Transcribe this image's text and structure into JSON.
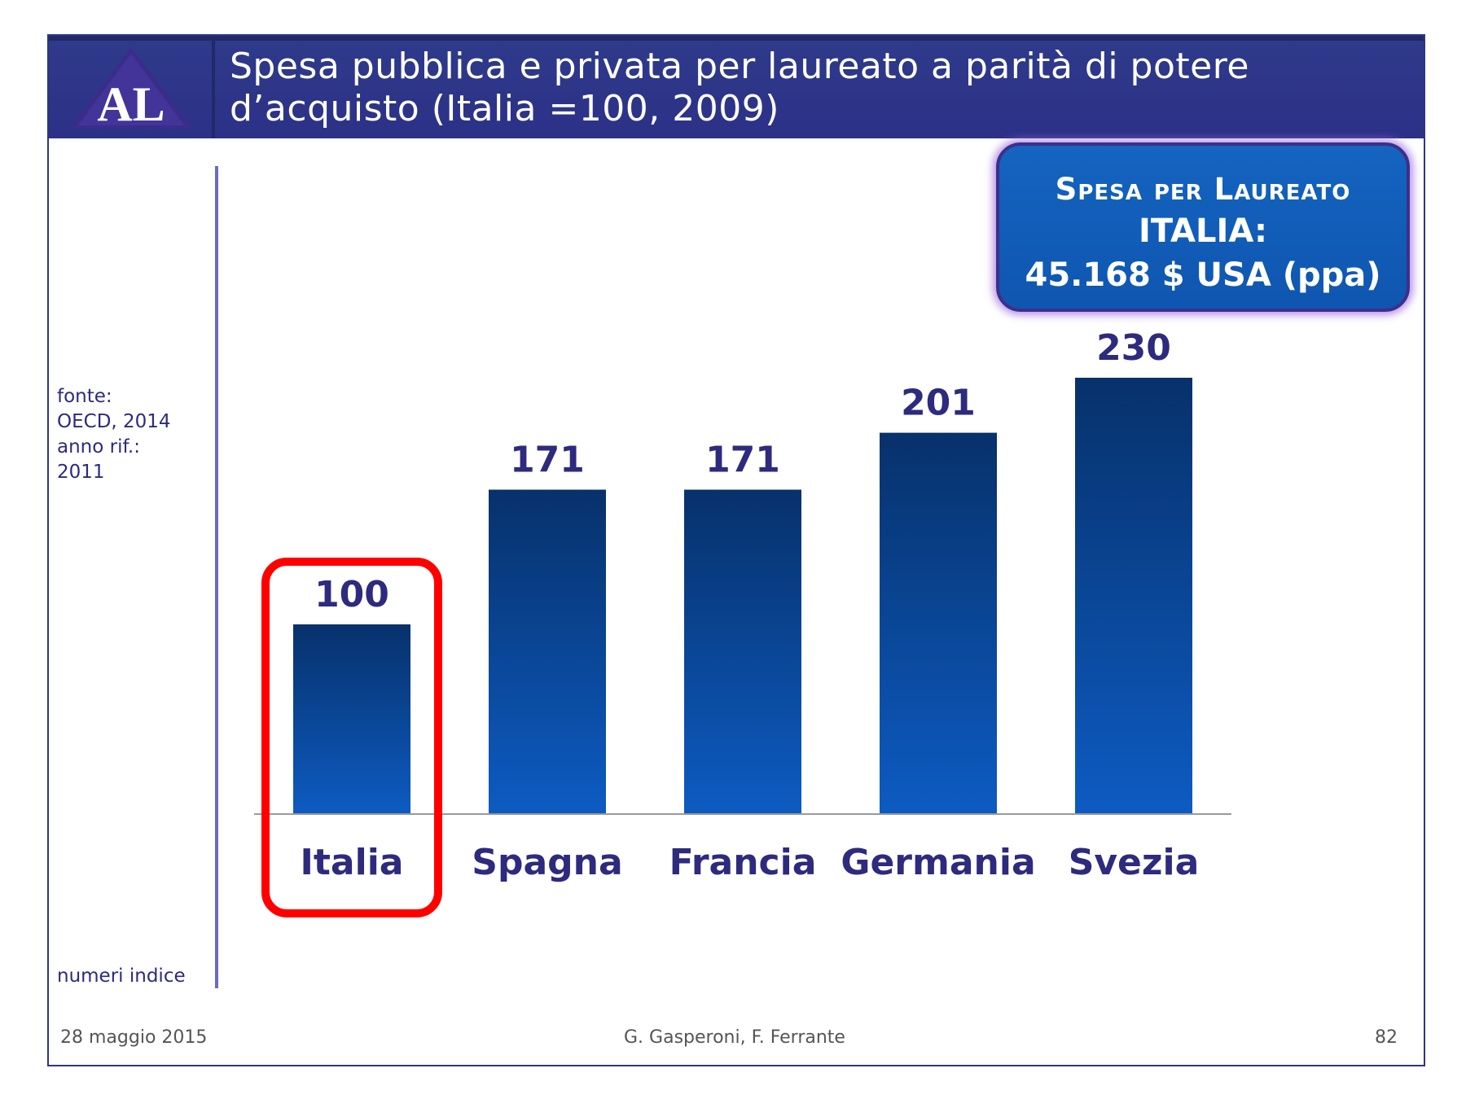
{
  "logo": {
    "text": "AL"
  },
  "title": "Spesa pubblica e privata per laureato a parità di potere d’acquisto (Italia =100, 2009)",
  "side_notes": {
    "source_lines": [
      "fonte:",
      "OECD, 2014",
      "anno rif.:",
      "2011"
    ],
    "unit": "numeri indice"
  },
  "callout": {
    "line1": "Spesa per Laureato",
    "line2": "ITALIA:",
    "line3": "45.168  $ USA (ppa)"
  },
  "footer": {
    "date": "28 maggio 2015",
    "authors": "G. Gasperoni, F. Ferrante",
    "page": "82"
  },
  "colors": {
    "header": "#2c3187",
    "bar_top": "#07316b",
    "bar_bottom": "#0d5bc2",
    "label": "#2e2a7e",
    "highlight": "#ff0000"
  },
  "chart_data": {
    "type": "bar",
    "categories": [
      "Italia",
      "Spagna",
      "Francia",
      "Germania",
      "Svezia"
    ],
    "values": [
      100,
      171,
      171,
      201,
      230
    ],
    "data_labels": [
      "100",
      "171",
      "171",
      "201",
      "230"
    ],
    "highlight_category": "Italia",
    "ylim": [
      0,
      230
    ],
    "grid": false,
    "legend": "none"
  }
}
